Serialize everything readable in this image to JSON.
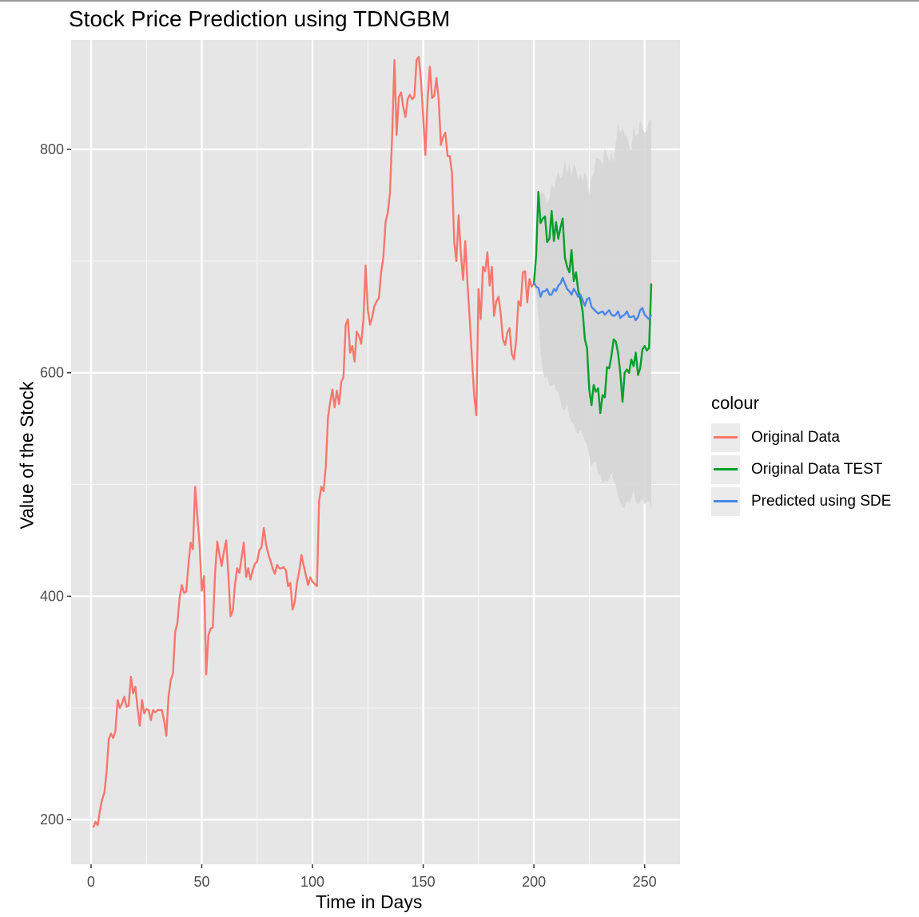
{
  "chart_data": {
    "type": "line",
    "title": "Stock Price Prediction using TDNGBM",
    "xlabel": "Time in Days",
    "ylabel": "Value of the Stock",
    "xlim": [
      -9,
      266
    ],
    "ylim": [
      160,
      898
    ],
    "xticks": [
      0,
      50,
      100,
      150,
      200,
      250
    ],
    "yticks": [
      200,
      400,
      600,
      800
    ],
    "grid": true,
    "legend": {
      "title": "colour",
      "position": "right"
    },
    "series": [
      {
        "name": "Original Data",
        "color": "#F8766D",
        "x": [
          1,
          2,
          3,
          4,
          5,
          6,
          7,
          8,
          9,
          10,
          11,
          12,
          13,
          14,
          15,
          16,
          17,
          18,
          19,
          20,
          21,
          22,
          23,
          24,
          25,
          26,
          27,
          28,
          29,
          30,
          31,
          32,
          33,
          34,
          35,
          36,
          37,
          38,
          39,
          40,
          41,
          42,
          43,
          44,
          45,
          46,
          47,
          48,
          49,
          50,
          51,
          52,
          53,
          54,
          55,
          56,
          57,
          58,
          59,
          60,
          61,
          62,
          63,
          64,
          65,
          66,
          67,
          68,
          69,
          70,
          71,
          72,
          73,
          74,
          75,
          76,
          77,
          78,
          79,
          80,
          81,
          82,
          83,
          84,
          85,
          86,
          87,
          88,
          89,
          90,
          91,
          92,
          93,
          94,
          95,
          96,
          97,
          98,
          99,
          100,
          101,
          102,
          103,
          104,
          105,
          106,
          107,
          108,
          109,
          110,
          111,
          112,
          113,
          114,
          115,
          116,
          117,
          118,
          119,
          120,
          121,
          122,
          123,
          124,
          125,
          126,
          127,
          128,
          129,
          130,
          131,
          132,
          133,
          134,
          135,
          136,
          137,
          138,
          139,
          140,
          141,
          142,
          143,
          144,
          145,
          146,
          147,
          148,
          149,
          150,
          151,
          152,
          153,
          154,
          155,
          156,
          157,
          158,
          159,
          160,
          161,
          162,
          163,
          164,
          165,
          166,
          167,
          168,
          169,
          170,
          171,
          172,
          173,
          174,
          175,
          176,
          177,
          178,
          179,
          180,
          181,
          182,
          183,
          184,
          185,
          186,
          187,
          188,
          189,
          190,
          191,
          192,
          193,
          194,
          195,
          196,
          197,
          198,
          199,
          200
        ],
        "y": [
          193,
          198,
          195,
          208,
          218,
          224,
          242,
          272,
          277,
          273,
          279,
          307,
          300,
          304,
          310,
          301,
          302,
          328,
          313,
          319,
          300,
          284,
          307,
          295,
          299,
          298,
          289,
          298,
          296,
          298,
          298,
          298,
          288,
          275,
          310,
          325,
          331,
          368,
          376,
          399,
          410,
          403,
          404,
          429,
          448,
          442,
          498,
          472,
          447,
          405,
          418,
          330,
          365,
          371,
          372,
          420,
          449,
          437,
          427,
          440,
          450,
          420,
          382,
          387,
          410,
          425,
          421,
          435,
          448,
          417,
          425,
          415,
          423,
          429,
          431,
          441,
          444,
          461,
          447,
          438,
          432,
          425,
          420,
          428,
          425,
          425,
          426,
          423,
          409,
          412,
          388,
          395,
          412,
          422,
          437,
          428,
          419,
          410,
          417,
          413,
          411,
          409,
          485,
          498,
          494,
          516,
          560,
          574,
          585,
          569,
          584,
          572,
          592,
          596,
          643,
          648,
          618,
          624,
          610,
          637,
          633,
          626,
          648,
          696,
          656,
          643,
          650,
          660,
          664,
          667,
          690,
          703,
          735,
          743,
          761,
          814,
          880,
          813,
          847,
          851,
          838,
          829,
          845,
          849,
          845,
          847,
          880,
          883,
          862,
          829,
          795,
          845,
          874,
          846,
          848,
          864,
          844,
          804,
          811,
          815,
          794,
          794,
          779,
          717,
          700,
          741,
          707,
          683,
          718,
          680,
          648,
          614,
          580,
          562,
          675,
          648,
          695,
          691,
          708,
          678,
          695,
          651,
          664,
          668,
          653,
          630,
          625,
          636,
          640,
          617,
          612,
          630,
          664,
          660,
          690,
          691,
          663,
          684,
          677,
          680
        ],
        "band": null
      },
      {
        "name": "Original Data TEST",
        "color": "#00A02A",
        "x": [
          200,
          201,
          202,
          203,
          204,
          205,
          206,
          207,
          208,
          209,
          210,
          211,
          212,
          213,
          214,
          215,
          216,
          217,
          218,
          219,
          220,
          221,
          222,
          223,
          224,
          225,
          226,
          227,
          228,
          229,
          230,
          231,
          232,
          233,
          234,
          235,
          236,
          237,
          238,
          239,
          240,
          241,
          242,
          243,
          244,
          245,
          246,
          247,
          248,
          249,
          250,
          251,
          252,
          253
        ],
        "y": [
          680,
          705,
          762,
          734,
          738,
          740,
          717,
          720,
          745,
          718,
          735,
          720,
          730,
          738,
          703,
          695,
          690,
          710,
          682,
          690,
          674,
          666,
          655,
          630,
          622,
          585,
          571,
          589,
          583,
          586,
          564,
          580,
          578,
          605,
          604,
          615,
          630,
          628,
          618,
          600,
          574,
          600,
          603,
          600,
          612,
          606,
          618,
          598,
          604,
          621,
          624,
          620,
          622,
          680
        ]
      },
      {
        "name": "Predicted using SDE",
        "color": "#4A86E8",
        "x": [
          200,
          201,
          202,
          203,
          204,
          205,
          206,
          207,
          208,
          209,
          210,
          211,
          212,
          213,
          214,
          215,
          216,
          217,
          218,
          219,
          220,
          221,
          222,
          223,
          224,
          225,
          226,
          227,
          228,
          229,
          230,
          231,
          232,
          233,
          234,
          235,
          236,
          237,
          238,
          239,
          240,
          241,
          242,
          243,
          244,
          245,
          246,
          247,
          248,
          249,
          250,
          251,
          252,
          253
        ],
        "y": [
          681,
          677,
          676,
          668,
          673,
          673,
          675,
          670,
          670,
          675,
          673,
          678,
          680,
          685,
          680,
          675,
          673,
          670,
          675,
          672,
          668,
          670,
          665,
          660,
          666,
          667,
          659,
          657,
          655,
          653,
          654,
          655,
          652,
          654,
          656,
          652,
          651,
          652,
          655,
          649,
          651,
          652,
          655,
          650,
          650,
          651,
          647,
          650,
          656,
          658,
          652,
          650,
          648,
          652
        ],
        "band_lower": [
          680,
          670,
          650,
          620,
          601,
          595,
          598,
          588,
          588,
          590,
          584,
          583,
          574,
          567,
          567,
          573,
          560,
          556,
          554,
          547,
          545,
          549,
          545,
          539,
          536,
          525,
          516,
          520,
          520,
          508,
          509,
          501,
          504,
          502,
          505,
          511,
          502,
          500,
          489,
          484,
          479,
          479,
          486,
          483,
          488,
          495,
          484,
          482,
          484,
          487,
          482,
          485,
          485,
          478
        ],
        "band_upper": [
          682,
          725,
          750,
          760,
          762,
          758,
          752,
          756,
          770,
          765,
          773,
          780,
          774,
          778,
          791,
          778,
          788,
          775,
          787,
          783,
          772,
          778,
          771,
          780,
          772,
          760,
          775,
          778,
          793,
          792,
          791,
          786,
          801,
          795,
          789,
          797,
          789,
          806,
          822,
          814,
          820,
          812,
          812,
          803,
          799,
          822,
          812,
          813,
          827,
          819,
          815,
          817,
          826,
          826
        ]
      }
    ]
  }
}
